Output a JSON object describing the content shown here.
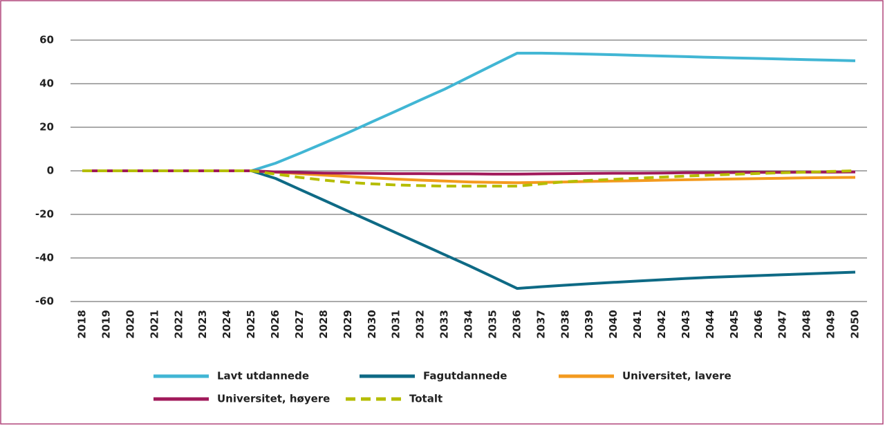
{
  "chart_data": {
    "type": "line",
    "categories": [
      "2018",
      "2019",
      "2020",
      "2021",
      "2022",
      "2023",
      "2024",
      "2025",
      "2026",
      "2027",
      "2028",
      "2029",
      "2030",
      "2031",
      "2032",
      "2033",
      "2034",
      "2035",
      "2036",
      "2037",
      "2038",
      "2039",
      "2040",
      "2041",
      "2042",
      "2043",
      "2044",
      "2045",
      "2046",
      "2047",
      "2048",
      "2049",
      "2050"
    ],
    "series": [
      {
        "name": "Lavt utdannede",
        "color": "#41b6d4",
        "values": [
          0,
          0,
          0,
          0,
          0,
          0,
          0,
          0,
          3.5,
          8,
          12.7,
          17.5,
          22.5,
          27.5,
          32.5,
          37.5,
          43,
          48.5,
          54,
          54,
          53.8,
          53.6,
          53.3,
          53,
          52.7,
          52.4,
          52.1,
          51.8,
          51.6,
          51.3,
          51,
          50.8,
          50.5
        ]
      },
      {
        "name": "Fagutdannede",
        "color": "#0e6a85",
        "values": [
          0,
          0,
          0,
          0,
          0,
          0,
          0,
          0,
          -3.5,
          -8.5,
          -13.5,
          -18.5,
          -23.5,
          -28.5,
          -33.5,
          -38.5,
          -43.5,
          -48.7,
          -54,
          -53.2,
          -52.5,
          -51.8,
          -51.2,
          -50.6,
          -50,
          -49.4,
          -48.9,
          -48.5,
          -48.1,
          -47.7,
          -47.3,
          -46.9,
          -46.5
        ]
      },
      {
        "name": "Universitet, lavere",
        "color": "#f39a1e",
        "values": [
          0,
          0,
          0,
          0,
          0,
          0,
          0,
          0,
          -0.6,
          -1.3,
          -2,
          -2.6,
          -3.2,
          -3.8,
          -4.3,
          -4.7,
          -5.1,
          -5.3,
          -5.5,
          -5.3,
          -5.1,
          -4.9,
          -4.7,
          -4.5,
          -4.3,
          -4.1,
          -3.9,
          -3.7,
          -3.6,
          -3.4,
          -3.2,
          -3.1,
          -3
        ]
      },
      {
        "name": "Universitet, høyere",
        "color": "#a0195a",
        "values": [
          0,
          0,
          0,
          0,
          0,
          0,
          0,
          0,
          -0.5,
          -0.8,
          -1,
          -1.1,
          -1.2,
          -1.3,
          -1.3,
          -1.4,
          -1.4,
          -1.5,
          -1.5,
          -1.4,
          -1.3,
          -1.2,
          -1.1,
          -1.1,
          -1,
          -0.9,
          -0.9,
          -0.8,
          -0.7,
          -0.7,
          -0.6,
          -0.6,
          -0.5
        ]
      },
      {
        "name": "Totalt",
        "color": "#b5bd00",
        "dashed": true,
        "values": [
          0,
          0,
          0,
          0,
          0,
          0,
          0,
          0,
          -1.5,
          -3,
          -4.3,
          -5.3,
          -6,
          -6.5,
          -6.8,
          -7,
          -7,
          -7,
          -7,
          -6,
          -5,
          -4.4,
          -3.9,
          -3.4,
          -2.9,
          -2.4,
          -2,
          -1.6,
          -1.2,
          -0.9,
          -0.6,
          -0.3,
          0
        ]
      }
    ],
    "ylim": [
      -60,
      60
    ],
    "yticks": [
      -60,
      -40,
      -20,
      0,
      20,
      40,
      60
    ],
    "grid": true
  }
}
